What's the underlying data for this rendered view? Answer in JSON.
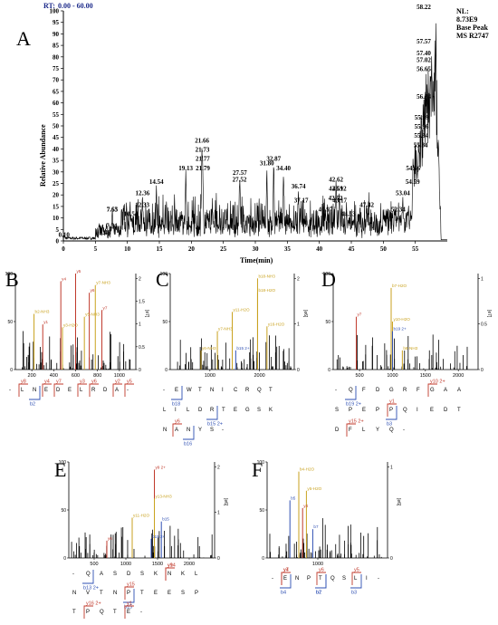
{
  "chart_data": [
    {
      "panel": "A",
      "type": "line",
      "header": {
        "rt_label": "RT:",
        "rt_range": "0.00 - 60.00",
        "nl_lines": [
          "NL:",
          "8.73E9",
          "Base Peak",
          "MS R2747"
        ]
      },
      "xlabel": "Time(min)",
      "ylabel": "Relative Abundance",
      "xlim": [
        0,
        60
      ],
      "ylim": [
        0,
        100
      ],
      "xticks": [
        0,
        5,
        10,
        15,
        20,
        25,
        30,
        35,
        40,
        45,
        50,
        55
      ],
      "yticks": [
        0,
        5,
        10,
        15,
        20,
        25,
        30,
        35,
        40,
        45,
        50,
        55,
        60,
        65,
        70,
        75,
        80,
        85,
        90,
        95,
        100
      ],
      "peak_labels": [
        {
          "text": "0.10",
          "x": 0.1,
          "y": 1
        },
        {
          "text": "6.48",
          "x": 6.48,
          "y": 2
        },
        {
          "text": "7.54",
          "x": 7.54,
          "y": 5
        },
        {
          "text": "7.63",
          "x": 7.63,
          "y": 12
        },
        {
          "text": "7.65",
          "x": 7.65,
          "y": 12
        },
        {
          "text": "10.54",
          "x": 10.54,
          "y": 10
        },
        {
          "text": "12.33",
          "x": 12.33,
          "y": 14
        },
        {
          "text": "12.36",
          "x": 12.36,
          "y": 19
        },
        {
          "text": "14.54",
          "x": 14.54,
          "y": 24
        },
        {
          "text": "19.13",
          "x": 19.13,
          "y": 30
        },
        {
          "text": "21.66",
          "x": 21.66,
          "y": 42
        },
        {
          "text": "21.73",
          "x": 21.73,
          "y": 38
        },
        {
          "text": "21.77",
          "x": 21.77,
          "y": 34
        },
        {
          "text": "21.79",
          "x": 21.79,
          "y": 30
        },
        {
          "text": "27.52",
          "x": 27.52,
          "y": 25
        },
        {
          "text": "27.57",
          "x": 27.57,
          "y": 28
        },
        {
          "text": "31.80",
          "x": 31.8,
          "y": 32
        },
        {
          "text": "32.87",
          "x": 32.87,
          "y": 34
        },
        {
          "text": "34.40",
          "x": 34.4,
          "y": 30
        },
        {
          "text": "36.74",
          "x": 36.74,
          "y": 22
        },
        {
          "text": "37.17",
          "x": 37.17,
          "y": 16
        },
        {
          "text": "40.97",
          "x": 40.97,
          "y": 12
        },
        {
          "text": "42.52",
          "x": 42.52,
          "y": 17
        },
        {
          "text": "42.59",
          "x": 42.59,
          "y": 21
        },
        {
          "text": "42.62",
          "x": 42.62,
          "y": 25
        },
        {
          "text": "43.12",
          "x": 43.12,
          "y": 21
        },
        {
          "text": "43.17",
          "x": 43.17,
          "y": 16
        },
        {
          "text": "44.53",
          "x": 44.53,
          "y": 10
        },
        {
          "text": "47.42",
          "x": 47.42,
          "y": 14
        },
        {
          "text": "52.34",
          "x": 52.34,
          "y": 12
        },
        {
          "text": "53.04",
          "x": 53.04,
          "y": 19
        },
        {
          "text": "54.59",
          "x": 54.59,
          "y": 24
        },
        {
          "text": "54.66",
          "x": 54.66,
          "y": 30
        },
        {
          "text": "55.84",
          "x": 55.84,
          "y": 40
        },
        {
          "text": "55.94",
          "x": 55.94,
          "y": 44
        },
        {
          "text": "55.96",
          "x": 55.96,
          "y": 48
        },
        {
          "text": "55.99",
          "x": 55.99,
          "y": 52
        },
        {
          "text": "56.34",
          "x": 56.34,
          "y": 61
        },
        {
          "text": "56.65",
          "x": 56.65,
          "y": 73
        },
        {
          "text": "57.02",
          "x": 57.02,
          "y": 77
        },
        {
          "text": "57.40",
          "x": 57.4,
          "y": 80
        },
        {
          "text": "57.57",
          "x": 57.57,
          "y": 85
        },
        {
          "text": "58.22",
          "x": 58.22,
          "y": 100
        }
      ]
    },
    {
      "panel": "B",
      "type": "bar",
      "xticks": [
        200,
        400,
        600,
        800,
        1000
      ],
      "xlim": [
        50,
        1150
      ],
      "yticks": [
        0,
        50,
        100
      ],
      "y2ticks": [
        "0",
        "0.5",
        "1",
        "1.5",
        "2"
      ],
      "y2label": "[e7]",
      "ion_labels": [
        {
          "text": "b2-NH3",
          "x": 220,
          "y": 58
        },
        {
          "text": "y1",
          "x": 300,
          "y": 47
        },
        {
          "text": "y4",
          "x": 465,
          "y": 92
        },
        {
          "text": "y5",
          "x": 600,
          "y": 100
        },
        {
          "text": "y7-NH3",
          "x": 780,
          "y": 88
        },
        {
          "text": "y6",
          "x": 725,
          "y": 80
        },
        {
          "text": "y3-H2O",
          "x": 480,
          "y": 44
        },
        {
          "text": "y5-NH3",
          "x": 680,
          "y": 55
        },
        {
          "text": "y7",
          "x": 840,
          "y": 62
        }
      ],
      "sequence": [
        {
          "row": [
            "-",
            "L",
            "N",
            "E",
            "D",
            "E",
            "L",
            "R",
            "D",
            "A",
            "-"
          ]
        }
      ],
      "fragments": [
        {
          "kind": "y",
          "label": "y8"
        },
        {
          "kind": "y",
          "label": "y7"
        },
        {
          "kind": "y",
          "label": "y6"
        },
        {
          "kind": "y",
          "label": "y5"
        },
        {
          "kind": "y",
          "label": "y4"
        },
        {
          "kind": "y",
          "label": "y3"
        },
        {
          "kind": "y",
          "label": "y2"
        },
        {
          "kind": "b",
          "label": "b2"
        }
      ]
    },
    {
      "panel": "C",
      "type": "bar",
      "xticks": [
        1000,
        2000
      ],
      "xlim": [
        200,
        2700
      ],
      "yticks": [
        0,
        50,
        100
      ],
      "y2ticks": [
        "0",
        "1",
        "2"
      ],
      "y2label": "[e6]",
      "ion_labels": [
        {
          "text": "b18-NH3",
          "x": 1960,
          "y": 95
        },
        {
          "text": "b18-H2O",
          "x": 1960,
          "y": 80
        },
        {
          "text": "y11-H2O",
          "x": 1450,
          "y": 60
        },
        {
          "text": "y7-NH3",
          "x": 1150,
          "y": 40
        },
        {
          "text": "y6-NH3",
          "x": 820,
          "y": 20
        },
        {
          "text": "b15 2+",
          "x": 1520,
          "y": 20
        },
        {
          "text": "y16-H2O",
          "x": 2150,
          "y": 45
        }
      ],
      "sequence": [
        {
          "row": [
            "-",
            "E",
            "W",
            "T",
            "N",
            "I",
            "C",
            "R",
            "Q",
            "T"
          ]
        },
        {
          "row": [
            "L",
            "I",
            "L",
            "D",
            "R",
            "T",
            "E",
            "G",
            "S",
            "K"
          ]
        },
        {
          "row": [
            "N",
            "A",
            "N",
            "Y",
            "S",
            "-"
          ]
        }
      ],
      "fragments": [
        {
          "kind": "y",
          "label": "y6"
        },
        {
          "kind": "b",
          "label": "b15 2+"
        },
        {
          "kind": "b",
          "label": "b16"
        },
        {
          "kind": "b",
          "label": "b18"
        }
      ]
    },
    {
      "panel": "D",
      "type": "bar",
      "xticks": [
        500,
        1000,
        1500,
        2000
      ],
      "xlim": [
        100,
        2300
      ],
      "yticks": [
        0,
        50,
        100
      ],
      "y2ticks": [
        "0",
        "0.5",
        "1"
      ],
      "y2label": "[e7]",
      "ion_labels": [
        {
          "text": "b7-H2O",
          "x": 980,
          "y": 85
        },
        {
          "text": "y10-H2O",
          "x": 1000,
          "y": 50
        },
        {
          "text": "b19 2+",
          "x": 1000,
          "y": 40
        },
        {
          "text": "b8-NH3",
          "x": 1150,
          "y": 20
        },
        {
          "text": "y7",
          "x": 450,
          "y": 55
        }
      ],
      "sequence": [
        {
          "row": [
            "-",
            "Q",
            "F",
            "D",
            "G",
            "R",
            "F",
            "G",
            "A",
            "A"
          ]
        },
        {
          "row": [
            "S",
            "P",
            "E",
            "P",
            "P",
            "Q",
            "I",
            "E",
            "D",
            "T"
          ]
        },
        {
          "row": [
            "D",
            "F",
            "L",
            "Y",
            "Q",
            "-"
          ]
        }
      ],
      "fragments": [
        {
          "kind": "y",
          "label": "y15 2+"
        },
        {
          "kind": "b",
          "label": "b3"
        },
        {
          "kind": "y",
          "label": "y10 2+"
        },
        {
          "kind": "b",
          "label": "b19 2+"
        },
        {
          "kind": "y",
          "label": "y1"
        }
      ]
    },
    {
      "panel": "E",
      "type": "bar",
      "xticks": [
        500,
        1000,
        1500,
        2000
      ],
      "xlim": [
        100,
        2400
      ],
      "yticks": [
        0,
        50,
        100
      ],
      "y2ticks": [
        "0",
        "1",
        "2"
      ],
      "y2label": "[e6]",
      "ion_labels": [
        {
          "text": "y9 2+",
          "x": 1450,
          "y": 92
        },
        {
          "text": "y13-NH3",
          "x": 1450,
          "y": 62
        },
        {
          "text": "y11-H2O",
          "x": 1100,
          "y": 42
        },
        {
          "text": "b15 2+",
          "x": 1400,
          "y": 20
        },
        {
          "text": "b15",
          "x": 1560,
          "y": 38
        },
        {
          "text": "y6",
          "x": 700,
          "y": 18
        }
      ],
      "sequence": [
        {
          "row": [
            "-",
            "Q",
            "A",
            "S",
            "D",
            "S",
            "K",
            "N",
            "K",
            "L"
          ]
        },
        {
          "row": [
            "N",
            "V",
            "T",
            "N",
            "P",
            "T",
            "E",
            "E",
            "S",
            "P"
          ]
        },
        {
          "row": [
            "T",
            "P",
            "Q",
            "T",
            "E",
            "-"
          ]
        }
      ],
      "fragments": [
        {
          "kind": "y",
          "label": "y16 2+"
        },
        {
          "kind": "y",
          "label": "y15"
        },
        {
          "kind": "y",
          "label": "y14"
        },
        {
          "kind": "b",
          "label": "b13 2+"
        },
        {
          "kind": "b",
          "label": "b15"
        },
        {
          "kind": "y",
          "label": "y9"
        },
        {
          "kind": "y",
          "label": "y1"
        }
      ]
    },
    {
      "panel": "F",
      "type": "bar",
      "xticks": [
        1000
      ],
      "xlim": [
        200,
        2100
      ],
      "yticks": [
        0,
        50,
        100
      ],
      "y2ticks": [
        "0",
        "1"
      ],
      "y2label": "[e6]",
      "ion_labels": [
        {
          "text": "b4-H2O",
          "x": 700,
          "y": 90
        },
        {
          "text": "y5-H2O",
          "x": 820,
          "y": 70
        },
        {
          "text": "b5",
          "x": 560,
          "y": 60
        },
        {
          "text": "y4",
          "x": 760,
          "y": 52
        },
        {
          "text": "b7",
          "x": 920,
          "y": 30
        }
      ],
      "sequence": [
        {
          "row": [
            "-",
            "E",
            "N",
            "P",
            "T",
            "Q",
            "S",
            "L",
            "I",
            "-"
          ]
        }
      ],
      "fragments": [
        {
          "kind": "y",
          "label": "y7"
        },
        {
          "kind": "y",
          "label": "y6"
        },
        {
          "kind": "y",
          "label": "y5"
        },
        {
          "kind": "y",
          "label": "y4"
        },
        {
          "kind": "b",
          "label": "b2"
        },
        {
          "kind": "b",
          "label": "b3"
        },
        {
          "kind": "b",
          "label": "b4"
        },
        {
          "kind": "b",
          "label": "b7"
        }
      ]
    }
  ],
  "colors": {
    "trace": "#000000",
    "b_ion": "#2e4fb3",
    "y_ion": "#c0392b",
    "neutral_loss": "#c9a21f",
    "rt_header": "#1c2a8a"
  }
}
